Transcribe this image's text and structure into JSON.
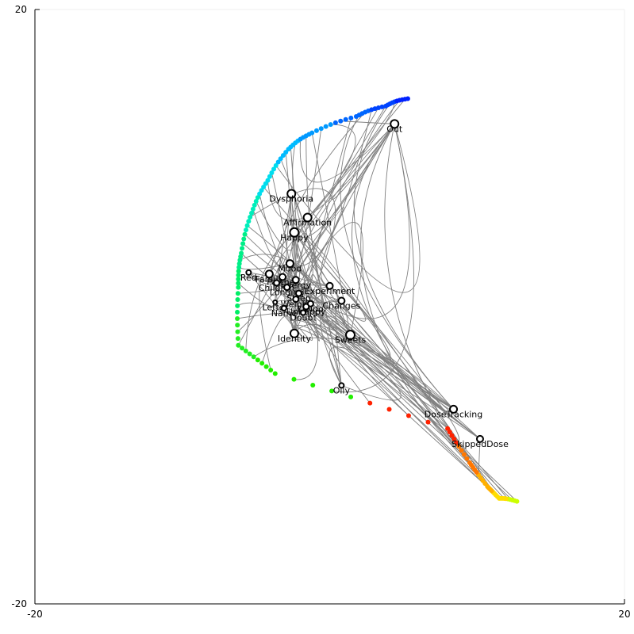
{
  "chart_data": {
    "type": "scatter",
    "xlim": [
      -20,
      20
    ],
    "ylim": [
      -20,
      20
    ],
    "grid": true,
    "legend": "none",
    "x_ticks": [
      "-20",
      "20"
    ],
    "y_ticks": [
      "-20",
      "20"
    ],
    "edge_color": "#808080",
    "node_fill": "#ffffff",
    "node_stroke": "#000000",
    "nodes": [
      {
        "label": "Out",
        "x": 4.4,
        "y": 12.3,
        "r": 1
      },
      {
        "label": "Dysphoria",
        "x": -2.6,
        "y": 7.6,
        "r": 1
      },
      {
        "label": "Affirmation",
        "x": -1.5,
        "y": 6.0,
        "r": 1
      },
      {
        "label": "Happy",
        "x": -2.4,
        "y": 5.0,
        "r": 1.1
      },
      {
        "label": "Mood",
        "x": -2.7,
        "y": 2.9,
        "r": 0.9
      },
      {
        "label": "Red",
        "x": -5.5,
        "y": 2.3,
        "r": 0.6
      },
      {
        "label": "Family",
        "x": -4.1,
        "y": 2.2,
        "r": 0.9
      },
      {
        "label": "Partner",
        "x": -3.2,
        "y": 2.0,
        "r": 0.8
      },
      {
        "label": "Children",
        "x": -3.6,
        "y": 1.6,
        "r": 0.7
      },
      {
        "label": "Energy",
        "x": -2.3,
        "y": 1.8,
        "r": 0.8
      },
      {
        "label": "Longing",
        "x": -2.9,
        "y": 1.3,
        "r": 0.7
      },
      {
        "label": "Sleep",
        "x": -2.1,
        "y": 0.9,
        "r": 0.7
      },
      {
        "label": "Experiment",
        "x": 0.0,
        "y": 1.4,
        "r": 0.8
      },
      {
        "label": "Weight",
        "x": -2.3,
        "y": 0.5,
        "r": 0.7
      },
      {
        "label": "Libido",
        "x": -1.3,
        "y": 0.2,
        "r": 0.7
      },
      {
        "label": "Letter",
        "x": -3.7,
        "y": 0.3,
        "r": 0.5
      },
      {
        "label": "Changes",
        "x": 0.8,
        "y": 0.4,
        "r": 0.8
      },
      {
        "label": "Unhappy",
        "x": -1.6,
        "y": 0.0,
        "r": 0.7
      },
      {
        "label": "Name",
        "x": -3.1,
        "y": -0.1,
        "r": 0.6
      },
      {
        "label": "Doubt",
        "x": -1.8,
        "y": -0.4,
        "r": 0.6
      },
      {
        "label": "Identity",
        "x": -2.4,
        "y": -1.8,
        "r": 1
      },
      {
        "label": "Sweets",
        "x": 1.4,
        "y": -1.9,
        "r": 1.1
      },
      {
        "label": "Oily",
        "x": 0.8,
        "y": -5.3,
        "r": 0.6
      },
      {
        "label": "DoseTracking",
        "x": 8.4,
        "y": -6.9,
        "r": 0.9
      },
      {
        "label": "SkippedDose",
        "x": 10.2,
        "y": -8.9,
        "r": 0.8
      }
    ],
    "color_arc": [
      {
        "x": 12.7,
        "y": -13.1,
        "color": "#ccff00"
      },
      {
        "x": 11.5,
        "y": -12.9,
        "color": "#ffdd00"
      },
      {
        "x": 10.7,
        "y": -12.1,
        "color": "#ffb000"
      },
      {
        "x": 9.5,
        "y": -10.5,
        "color": "#ff7700"
      },
      {
        "x": 8.0,
        "y": -8.2,
        "color": "#ff2200"
      },
      {
        "x": -3.7,
        "y": -4.5,
        "color": "#22ee00"
      },
      {
        "x": -6.2,
        "y": -2.6,
        "color": "#22ee22"
      },
      {
        "x": -6.2,
        "y": 1.3,
        "color": "#00ee66"
      },
      {
        "x": -6.0,
        "y": 3.6,
        "color": "#00ee88"
      },
      {
        "x": -5.3,
        "y": 6.3,
        "color": "#00eebb"
      },
      {
        "x": -4.2,
        "y": 8.5,
        "color": "#00ddee"
      },
      {
        "x": -2.8,
        "y": 10.6,
        "color": "#00bbff"
      },
      {
        "x": -1.2,
        "y": 11.7,
        "color": "#0099ff"
      },
      {
        "x": 1.8,
        "y": 12.8,
        "color": "#0066ff"
      },
      {
        "x": 3.8,
        "y": 13.5,
        "color": "#0044ff"
      },
      {
        "x": 5.3,
        "y": 14.0,
        "color": "#0022ff"
      }
    ]
  }
}
